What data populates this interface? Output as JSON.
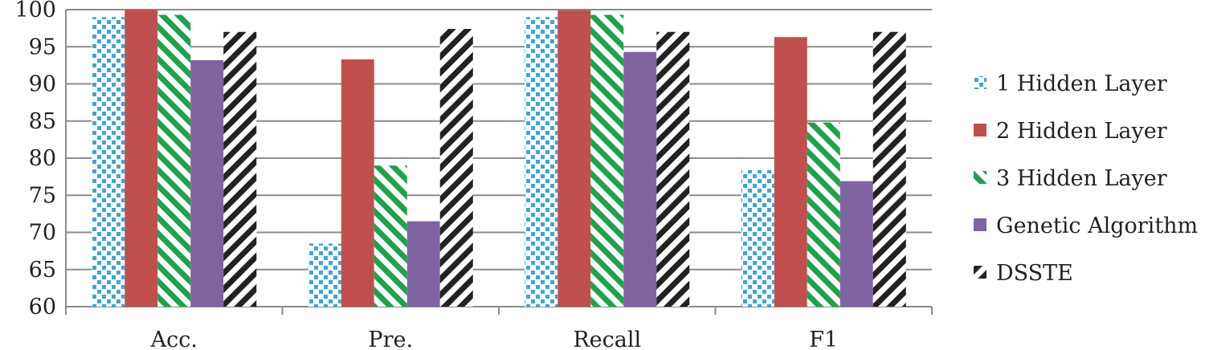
{
  "chart_data": {
    "type": "bar",
    "categories": [
      "Acc.",
      "Pre.",
      "Recall",
      "F1"
    ],
    "series": [
      {
        "name": "1 Hidden Layer",
        "values": [
          99.0,
          68.5,
          99.0,
          78.4
        ],
        "color": "#3aa6dc",
        "pattern": "dots"
      },
      {
        "name": "2 Hidden Layer",
        "values": [
          100.0,
          93.3,
          99.9,
          96.3
        ],
        "color": "#c0504d",
        "pattern": "solid"
      },
      {
        "name": "3 Hidden Layer",
        "values": [
          99.3,
          79.0,
          99.3,
          84.8
        ],
        "color": "#1fa24a",
        "pattern": "diagonal"
      },
      {
        "name": "Genetic Algorithm",
        "values": [
          93.2,
          71.5,
          94.3,
          76.9
        ],
        "color": "#8064a2",
        "pattern": "solid"
      },
      {
        "name": "DSSTE",
        "values": [
          97.0,
          97.4,
          97.0,
          97.0
        ],
        "color": "#222222",
        "pattern": "backdiagonal"
      }
    ],
    "ylim": [
      60,
      100
    ],
    "yticks": [
      60,
      65,
      70,
      75,
      80,
      85,
      90,
      95,
      100
    ],
    "grid": true,
    "legend": "right",
    "title": "",
    "xlabel": "",
    "ylabel": ""
  }
}
